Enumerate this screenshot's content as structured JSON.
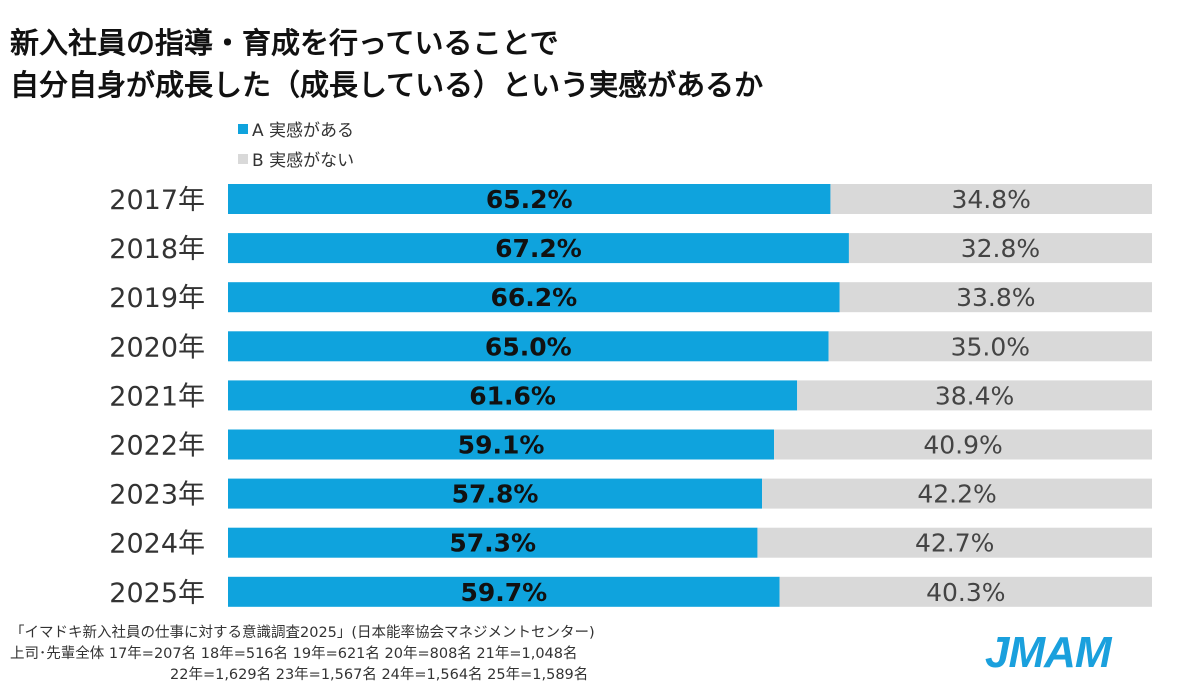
{
  "title_line1": "新入社員の指導・育成を行っていることで",
  "title_line2": "自分自身が成長した（成長している）という実感があるか",
  "chart_data": {
    "type": "bar",
    "orientation": "horizontal-stacked-100",
    "categories": [
      "2017年",
      "2018年",
      "2019年",
      "2020年",
      "2021年",
      "2022年",
      "2023年",
      "2024年",
      "2025年"
    ],
    "series": [
      {
        "name": "A 実感がある",
        "values": [
          65.2,
          67.2,
          66.2,
          65.0,
          61.6,
          59.1,
          57.8,
          57.3,
          59.7
        ],
        "labels": [
          "65.2%",
          "67.2%",
          "66.2%",
          "65.0%",
          "61.6%",
          "59.1%",
          "57.8%",
          "57.3%",
          "59.7%"
        ],
        "color": "#0fa3dd"
      },
      {
        "name": "B 実感がない",
        "values": [
          34.8,
          32.8,
          33.8,
          35.0,
          38.4,
          40.9,
          42.2,
          42.7,
          40.3
        ],
        "labels": [
          "34.8%",
          "32.8%",
          "33.8%",
          "35.0%",
          "38.4%",
          "40.9%",
          "42.2%",
          "42.7%",
          "40.3%"
        ],
        "color": "#d9d9d9"
      }
    ],
    "xlim": [
      0,
      100
    ],
    "legend": "top-left"
  },
  "legend": {
    "a": "A  実感がある",
    "b": "B  実感がない"
  },
  "notes": {
    "source": "「イマドキ新入社員の仕事に対する意識調査2025」(日本能率協会マネジメントセンター)",
    "line2": "上司･先輩全体  17年=207名  18年=516名  19年=621名  20年=808名  21年=1,048名",
    "line3": "22年=1,629名  23年=1,567名  24年=1,564名  25年=1,589名"
  },
  "logo": "JMAM"
}
